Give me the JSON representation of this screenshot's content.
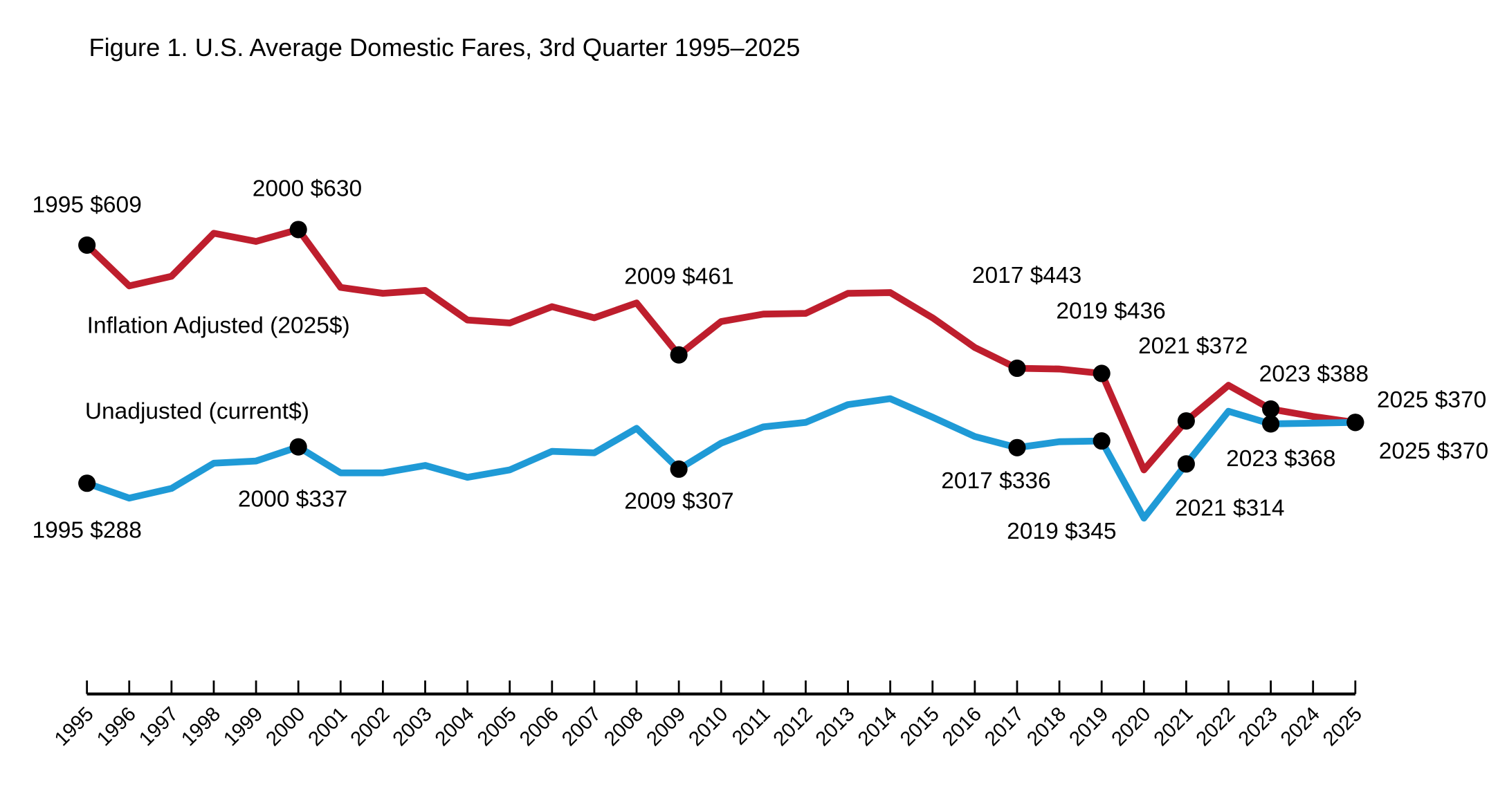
{
  "chart_data": {
    "type": "line",
    "title": "Figure 1. U.S. Average Domestic Fares, 3rd Quarter 1995–2025",
    "xlabel": "",
    "ylabel": "",
    "ylim": [
      0,
      700
    ],
    "grid": false,
    "categories": [
      "1995",
      "1996",
      "1997",
      "1998",
      "1999",
      "2000",
      "2001",
      "2002",
      "2003",
      "2004",
      "2005",
      "2006",
      "2007",
      "2008",
      "2009",
      "2010",
      "2011",
      "2012",
      "2013",
      "2014",
      "2015",
      "2016",
      "2017",
      "2018",
      "2019",
      "2020",
      "2021",
      "2022",
      "2023",
      "2024",
      "2025"
    ],
    "series": [
      {
        "name": "Inflation Adjusted (2025$)",
        "color": "#be1e2d",
        "values": [
          609,
          554,
          567,
          625,
          614,
          630,
          552,
          544,
          548,
          508,
          504,
          526,
          511,
          531,
          461,
          506,
          516,
          517,
          544,
          545,
          511,
          471,
          443,
          442,
          436,
          306,
          372,
          420,
          388,
          378,
          370
        ],
        "annotations": [
          {
            "year": "1995",
            "text": "1995 $609"
          },
          {
            "year": "2000",
            "text": "2000 $630"
          },
          {
            "year": "2009",
            "text": "2009 $461"
          },
          {
            "year": "2017",
            "text": "2017 $443"
          },
          {
            "year": "2019",
            "text": "2019 $436"
          },
          {
            "year": "2021",
            "text": "2021 $372"
          },
          {
            "year": "2023",
            "text": "2023 $388"
          },
          {
            "year": "2025",
            "text": "2025 $370"
          }
        ]
      },
      {
        "name": "Unadjusted (current$)",
        "color": "#1f9ad6",
        "values": [
          288,
          268,
          281,
          315,
          318,
          337,
          302,
          302,
          312,
          296,
          306,
          331,
          329,
          362,
          307,
          342,
          364,
          370,
          394,
          402,
          377,
          351,
          336,
          344,
          345,
          241,
          314,
          385,
          368,
          369,
          370
        ],
        "annotations": [
          {
            "year": "1995",
            "text": "1995 $288"
          },
          {
            "year": "2000",
            "text": "2000 $337"
          },
          {
            "year": "2009",
            "text": "2009 $307"
          },
          {
            "year": "2017",
            "text": "2017 $336"
          },
          {
            "year": "2019",
            "text": "2019 $345"
          },
          {
            "year": "2021",
            "text": "2021 $314"
          },
          {
            "year": "2023",
            "text": "2023 $368"
          },
          {
            "year": "2025",
            "text": "2025 $370"
          }
        ]
      }
    ]
  }
}
